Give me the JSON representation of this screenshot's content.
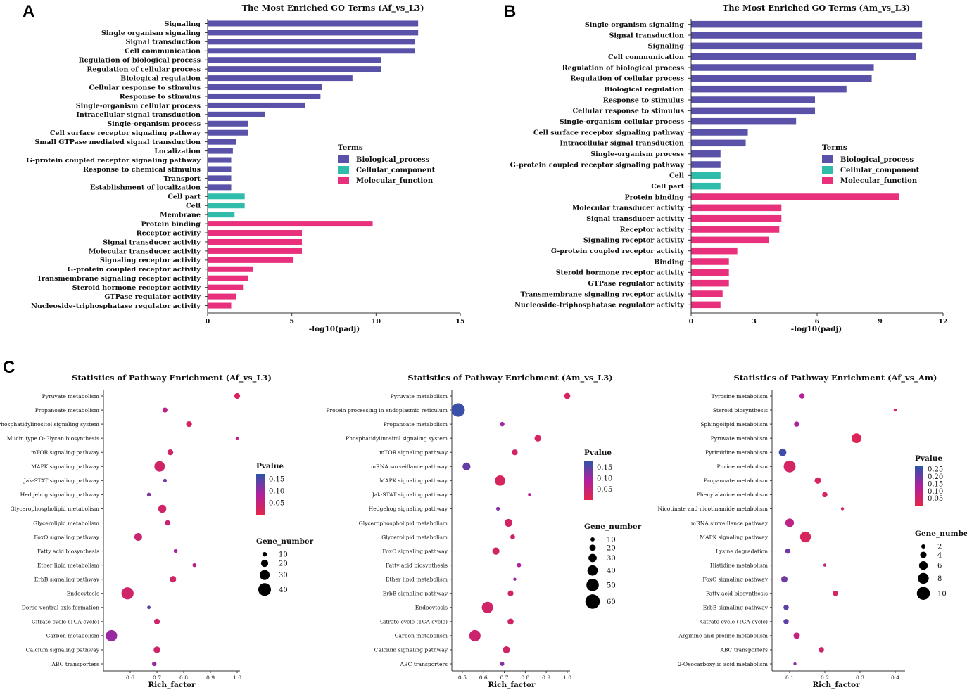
{
  "panel_labels": [
    "A",
    "B",
    "C"
  ],
  "colors": {
    "biological_process": "#5a51a8",
    "cellular_component": "#2fbcaa",
    "molecular_function": "#e8307c",
    "pvalue_low": "#e2264a",
    "pvalue_mid": "#b0209e",
    "pvalue_high": "#2b55a8"
  },
  "chart_data": [
    {
      "type": "bar",
      "orientation": "horizontal",
      "panel": "A",
      "title": "The Most Enriched GO Terms (Af_vs_L3)",
      "xlabel": "-log10(padj)",
      "xlim": [
        0,
        15
      ],
      "xticks": [
        0,
        5,
        10,
        15
      ],
      "legend_title": "Terms",
      "legend": [
        "Biological_process",
        "Cellular_component",
        "Molecular_function"
      ],
      "legend_position": "right",
      "categories": [
        "Signaling",
        "Single organism signaling",
        "Signal transduction",
        "Cell communication",
        "Regulation of biological process",
        "Regulation of cellular process",
        "Biological regulation",
        "Cellular response to stimulus",
        "Response to stimulus",
        "Single-organism cellular process",
        "Intracellular signal transduction",
        "Single-organism process",
        "Cell surface receptor signaling pathway",
        "Small GTPase mediated signal transduction",
        "Localization",
        "G-protein coupled receptor signaling pathway",
        "Response to chemical stimulus",
        "Transport",
        "Establishment of localization",
        "Cell part",
        "Cell",
        "Membrane",
        "Protein binding",
        "Receptor activity",
        "Signal transducer activity",
        "Molecular transducer activity",
        "Signaling receptor activity",
        "G-protein coupled receptor activity",
        "Transmembrane signaling receptor activity",
        "Steroid hormone receptor activity",
        "GTPase regulator activity",
        "Nucleoside-triphosphatase regulator activity"
      ],
      "values": [
        12.5,
        12.5,
        12.3,
        12.3,
        10.3,
        10.3,
        8.6,
        6.8,
        6.7,
        5.8,
        3.4,
        2.4,
        2.4,
        1.7,
        1.5,
        1.4,
        1.4,
        1.4,
        1.4,
        2.2,
        2.2,
        1.6,
        9.8,
        5.6,
        5.6,
        5.6,
        5.1,
        2.7,
        2.4,
        2.1,
        1.7,
        1.4
      ],
      "groups": [
        "Biological_process",
        "Biological_process",
        "Biological_process",
        "Biological_process",
        "Biological_process",
        "Biological_process",
        "Biological_process",
        "Biological_process",
        "Biological_process",
        "Biological_process",
        "Biological_process",
        "Biological_process",
        "Biological_process",
        "Biological_process",
        "Biological_process",
        "Biological_process",
        "Biological_process",
        "Biological_process",
        "Biological_process",
        "Cellular_component",
        "Cellular_component",
        "Cellular_component",
        "Molecular_function",
        "Molecular_function",
        "Molecular_function",
        "Molecular_function",
        "Molecular_function",
        "Molecular_function",
        "Molecular_function",
        "Molecular_function",
        "Molecular_function",
        "Molecular_function"
      ]
    },
    {
      "type": "bar",
      "orientation": "horizontal",
      "panel": "B",
      "title": "The Most Enriched GO Terms (Am_vs_L3)",
      "xlabel": "-log10(padj)",
      "xlim": [
        0,
        12
      ],
      "xticks": [
        0,
        3,
        6,
        9,
        12
      ],
      "legend_title": "Terms",
      "legend": [
        "Biological_process",
        "Cellular_component",
        "Molecular_function"
      ],
      "legend_position": "right",
      "categories": [
        "Single organism signaling",
        "Signal transduction",
        "Signaling",
        "Cell communication",
        "Regulation of biological process",
        "Regulation of cellular process",
        "Biological regulation",
        "Response to stimulus",
        "Cellular response to stimulus",
        "Single-organism cellular process",
        "Cell surface receptor signaling pathway",
        "Intracellular signal transduction",
        "Single-organism process",
        "G-protein coupled receptor signaling pathway",
        "Cell",
        "Cell part",
        "Protein binding",
        "Molecular transducer activity",
        "Signal transducer activity",
        "Receptor activity",
        "Signaling receptor activity",
        "G-protein coupled receptor activity",
        "Binding",
        "Steroid hormone receptor activity",
        "GTPase regulator activity",
        "Transmembrane signaling receptor activity",
        "Nucleoside-triphosphatase regulator activity"
      ],
      "values": [
        11.0,
        11.0,
        11.0,
        10.7,
        8.7,
        8.6,
        7.4,
        5.9,
        5.9,
        5.0,
        2.7,
        2.6,
        1.4,
        1.4,
        1.4,
        1.4,
        9.9,
        4.3,
        4.3,
        4.2,
        3.7,
        2.2,
        1.8,
        1.8,
        1.8,
        1.5,
        1.4
      ],
      "groups": [
        "Biological_process",
        "Biological_process",
        "Biological_process",
        "Biological_process",
        "Biological_process",
        "Biological_process",
        "Biological_process",
        "Biological_process",
        "Biological_process",
        "Biological_process",
        "Biological_process",
        "Biological_process",
        "Biological_process",
        "Biological_process",
        "Cellular_component",
        "Cellular_component",
        "Molecular_function",
        "Molecular_function",
        "Molecular_function",
        "Molecular_function",
        "Molecular_function",
        "Molecular_function",
        "Molecular_function",
        "Molecular_function",
        "Molecular_function",
        "Molecular_function",
        "Molecular_function"
      ]
    },
    {
      "type": "scatter",
      "panel": "C",
      "title": "Statistics of Pathway Enrichment (Af_vs_L3)",
      "xlabel": "Rich_factor",
      "xlim": [
        0.5,
        1.0
      ],
      "xticks": [
        0.6,
        0.7,
        0.8,
        0.9,
        1.0
      ],
      "pvalue_title": "Pvalue",
      "pvalue_ticks": [
        0.15,
        0.1,
        0.05
      ],
      "pvalue_range": [
        0.0,
        0.17
      ],
      "size_title": "Gene_number",
      "size_ticks": [
        10,
        20,
        30,
        40
      ],
      "size_range": [
        5,
        45
      ],
      "categories": [
        "Pyruvate metabolism",
        "Propanoate metabolism",
        "Phosphatidylinositol signaling system",
        "Mucin type O-Glycan biosynthesis",
        "mTOR signaling pathway",
        "MAPK signaling pathway",
        "Jak-STAT signaling pathway",
        "Hedgehog signaling pathway",
        "Glycerophospholipid metabolism",
        "Glycerolipid metabolism",
        "FoxO signaling pathway",
        "Fatty acid biosynthesis",
        "Ether lipid metabolism",
        "ErbB signaling pathway",
        "Endocytosis",
        "Dorso-ventral axis formation",
        "Citrate cycle (TCA cycle)",
        "Carbon metabolism",
        "Calcium signaling pathway",
        "ABC transporters"
      ],
      "x": [
        1.0,
        0.73,
        0.82,
        1.0,
        0.75,
        0.71,
        0.73,
        0.67,
        0.72,
        0.74,
        0.63,
        0.77,
        0.84,
        0.76,
        0.59,
        0.67,
        0.7,
        0.53,
        0.7,
        0.69
      ],
      "pvalue": [
        0.02,
        0.06,
        0.02,
        0.06,
        0.03,
        0.03,
        0.12,
        0.12,
        0.03,
        0.04,
        0.04,
        0.09,
        0.07,
        0.03,
        0.03,
        0.15,
        0.03,
        0.1,
        0.03,
        0.1
      ],
      "gene_number": [
        15,
        12,
        15,
        5,
        15,
        32,
        7,
        8,
        23,
        13,
        22,
        8,
        8,
        17,
        38,
        6,
        15,
        35,
        18,
        10
      ]
    },
    {
      "type": "scatter",
      "panel": "C",
      "title": "Statistics of Pathway Enrichment (Am_vs_L3)",
      "xlabel": "Rich_factor",
      "xlim": [
        0.45,
        1.0
      ],
      "xticks": [
        0.5,
        0.6,
        0.7,
        0.8,
        0.9,
        1.0
      ],
      "pvalue_title": "Pvalue",
      "pvalue_ticks": [
        0.15,
        0.1,
        0.05
      ],
      "pvalue_range": [
        0.0,
        0.18
      ],
      "size_title": "Gene_number",
      "size_ticks": [
        10,
        20,
        30,
        40,
        50,
        60
      ],
      "size_range": [
        5,
        65
      ],
      "categories": [
        "Pyruvate metabolism",
        "Protein processing in endoplasmic reticulum",
        "Propanoate metabolism",
        "Phosphatidylinositol signaling system",
        "mTOR signaling pathway",
        "mRNA surveillance pathway",
        "MAPK signaling pathway",
        "Jak-STAT signaling pathway",
        "Hedgehog signaling pathway",
        "Glycerophospholipid metabolism",
        "Glycerolipid metabolism",
        "FoxO signaling pathway",
        "Fatty acid biosynthesis",
        "Ether lipid metabolism",
        "ErbB signaling pathway",
        "Endocytosis",
        "Citrate cycle (TCA cycle)",
        "Carbon metabolism",
        "Calcium signaling pathway",
        "ABC transporters"
      ],
      "x": [
        1.0,
        0.48,
        0.69,
        0.86,
        0.75,
        0.52,
        0.68,
        0.82,
        0.67,
        0.72,
        0.74,
        0.66,
        0.77,
        0.75,
        0.73,
        0.62,
        0.73,
        0.56,
        0.71,
        0.69
      ],
      "pvalue": [
        0.02,
        0.17,
        0.1,
        0.02,
        0.03,
        0.14,
        0.02,
        0.08,
        0.12,
        0.03,
        0.04,
        0.03,
        0.09,
        0.1,
        0.03,
        0.03,
        0.03,
        0.04,
        0.03,
        0.12
      ],
      "gene_number": [
        20,
        55,
        12,
        22,
        18,
        28,
        40,
        3,
        8,
        28,
        13,
        25,
        10,
        4,
        18,
        45,
        20,
        45,
        24,
        10
      ]
    },
    {
      "type": "scatter",
      "panel": "C",
      "title": "Statistics of Pathway Enrichment (Af_vs_Am)",
      "xlabel": "Rich_factor",
      "xlim": [
        0.05,
        0.42
      ],
      "xticks": [
        0.1,
        0.2,
        0.3,
        0.4
      ],
      "pvalue_title": "Pvalue",
      "pvalue_ticks": [
        0.25,
        0.2,
        0.15,
        0.1,
        0.05
      ],
      "pvalue_range": [
        0.0,
        0.27
      ],
      "size_title": "Gene_number",
      "size_ticks": [
        2,
        4,
        6,
        8,
        10
      ],
      "size_range": [
        1,
        11
      ],
      "categories": [
        "Tyrosine metabolism",
        "Steroid biosynthesis",
        "Sphingolipid metabolism",
        "Pyruvate metabolism",
        "Pyrimidine metabolism",
        "Purine metabolism",
        "Propanoate metabolism",
        "Phenylalanine metabolism",
        "Nicotinate and nicotinamide metabolism",
        "mRNA surveillance pathway",
        "MAPK signaling pathway",
        "Lysine degradation",
        "Histidine metabolism",
        "FoxO signaling pathway",
        "Fatty acid biosynthesis",
        "ErbB signaling pathway",
        "Citrate cycle (TCA cycle)",
        "Arginine and proline metabolism",
        "ABC transporters",
        "2-Oxocarboxylic acid metabolism"
      ],
      "x": [
        0.135,
        0.4,
        0.12,
        0.29,
        0.08,
        0.1,
        0.18,
        0.2,
        0.25,
        0.1,
        0.145,
        0.095,
        0.2,
        0.085,
        0.23,
        0.09,
        0.09,
        0.12,
        0.19,
        0.115
      ],
      "pvalue": [
        0.12,
        0.02,
        0.14,
        0.02,
        0.25,
        0.04,
        0.03,
        0.03,
        0.05,
        0.1,
        0.03,
        0.2,
        0.08,
        0.2,
        0.03,
        0.22,
        0.22,
        0.08,
        0.05,
        0.18
      ],
      "gene_number": [
        3,
        1,
        3,
        7,
        5,
        9,
        4,
        3,
        1,
        6,
        8,
        3,
        1,
        4,
        3,
        3,
        3,
        4,
        3,
        1
      ]
    }
  ]
}
